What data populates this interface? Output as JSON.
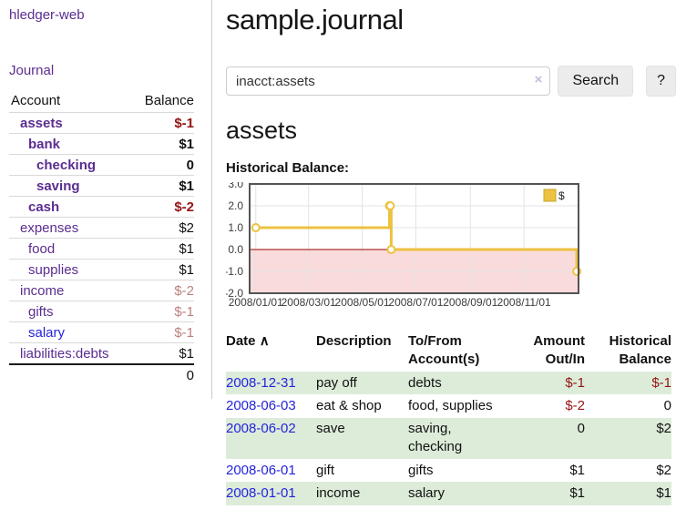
{
  "app": {
    "title": "hledger-web",
    "nav_journal": "Journal"
  },
  "sidebar": {
    "accounts_table": {
      "headers": {
        "account": "Account",
        "balance": "Balance"
      },
      "rows": [
        {
          "account": "assets",
          "balance": "$-1",
          "indent": 1,
          "bold": true,
          "balance_style": "neg-strong"
        },
        {
          "account": "bank",
          "balance": "$1",
          "indent": 2,
          "bold": true,
          "balance_style": "normal"
        },
        {
          "account": "checking",
          "balance": "0",
          "indent": 3,
          "bold": true,
          "balance_style": "normal"
        },
        {
          "account": "saving",
          "balance": "$1",
          "indent": 3,
          "bold": true,
          "balance_style": "normal"
        },
        {
          "account": "cash",
          "balance": "$-2",
          "indent": 2,
          "bold": true,
          "balance_style": "neg-strong"
        },
        {
          "account": "expenses",
          "balance": "$2",
          "indent": 1,
          "bold": false,
          "balance_style": "normal"
        },
        {
          "account": "food",
          "balance": "$1",
          "indent": 2,
          "bold": false,
          "balance_style": "normal"
        },
        {
          "account": "supplies",
          "balance": "$1",
          "indent": 2,
          "bold": false,
          "balance_style": "normal"
        },
        {
          "account": "income",
          "balance": "$-2",
          "indent": 1,
          "bold": false,
          "balance_style": "neg-soft"
        },
        {
          "account": "gifts",
          "balance": "$-1",
          "indent": 2,
          "bold": false,
          "balance_style": "neg-soft"
        },
        {
          "account": "salary",
          "balance": "$-1",
          "indent": 2,
          "bold": false,
          "balance_style": "neg-soft",
          "link_style": "blue"
        },
        {
          "account": "liabilities:debts",
          "balance": "$1",
          "indent": 1,
          "bold": false,
          "balance_style": "normal"
        }
      ],
      "total": "0"
    }
  },
  "main": {
    "title": "sample.journal",
    "search": {
      "value": "inacct:assets",
      "clear_icon": "×",
      "search_button": "Search",
      "help_button": "?"
    },
    "account_heading": "assets",
    "chart_title": "Historical Balance:"
  },
  "chart_data": {
    "type": "line",
    "title": "Historical Balance",
    "series": [
      {
        "name": "$",
        "color": "#edc240",
        "step": true,
        "points": [
          {
            "date": "2008-01-01",
            "value": 1.0
          },
          {
            "date": "2008-06-01",
            "value": 2.0
          },
          {
            "date": "2008-06-02",
            "value": 2.0
          },
          {
            "date": "2008-06-03",
            "value": 0.0
          },
          {
            "date": "2008-12-31",
            "value": -1.0
          }
        ]
      }
    ],
    "x_ticks": [
      {
        "label": "2008/01/01",
        "date": "2008-01-01"
      },
      {
        "label": "2008/03/01",
        "date": "2008-03-01"
      },
      {
        "label": "2008/05/01",
        "date": "2008-05-01"
      },
      {
        "label": "2008/07/01",
        "date": "2008-07-01"
      },
      {
        "label": "2008/09/01",
        "date": "2008-09-01"
      },
      {
        "label": "2008/11/01",
        "date": "2008-11-01"
      }
    ],
    "y_ticks": [
      3.0,
      2.0,
      1.0,
      0.0,
      -1.0,
      -2.0
    ],
    "ylim": [
      -2.0,
      3.0
    ],
    "xlim": [
      "2007-12-25",
      "2009-01-02"
    ],
    "legend": {
      "label": "$",
      "position": "top-right"
    },
    "grid": true,
    "colors": {
      "zero_line": "#990000",
      "negative_region": "#fadbdb",
      "gridline": "#e3e3e3",
      "border": "#545454"
    }
  },
  "register_table": {
    "sort_icon": "∧",
    "headers": [
      "Date",
      "Description",
      "To/From Account(s)",
      "Amount Out/In",
      "Historical Balance"
    ],
    "rows": [
      {
        "date": "2008-12-31",
        "description": "pay off",
        "accounts": [
          "debts"
        ],
        "amount": "$-1",
        "amount_negative": true,
        "balance": "$-1",
        "balance_negative": true
      },
      {
        "date": "2008-06-03",
        "description": "eat & shop",
        "accounts": [
          "food, supplies"
        ],
        "amount": "$-2",
        "amount_negative": true,
        "balance": "0",
        "balance_negative": false
      },
      {
        "date": "2008-06-02",
        "description": "save",
        "accounts": [
          "saving,",
          "checking"
        ],
        "amount": "0",
        "amount_negative": false,
        "balance": "$2",
        "balance_negative": false
      },
      {
        "date": "2008-06-01",
        "description": "gift",
        "accounts": [
          "gifts"
        ],
        "amount": "$1",
        "amount_negative": false,
        "balance": "$2",
        "balance_negative": false
      },
      {
        "date": "2008-01-01",
        "description": "income",
        "accounts": [
          "salary"
        ],
        "amount": "$1",
        "amount_negative": false,
        "balance": "$1",
        "balance_negative": false
      }
    ]
  },
  "colors": {
    "link_purple": "#5b2d90",
    "link_blue": "#2424dd",
    "negative_strong": "#951414",
    "negative_soft": "#bd7f7f",
    "row_green": "#ddecd9",
    "chart_line": "#edc240"
  }
}
